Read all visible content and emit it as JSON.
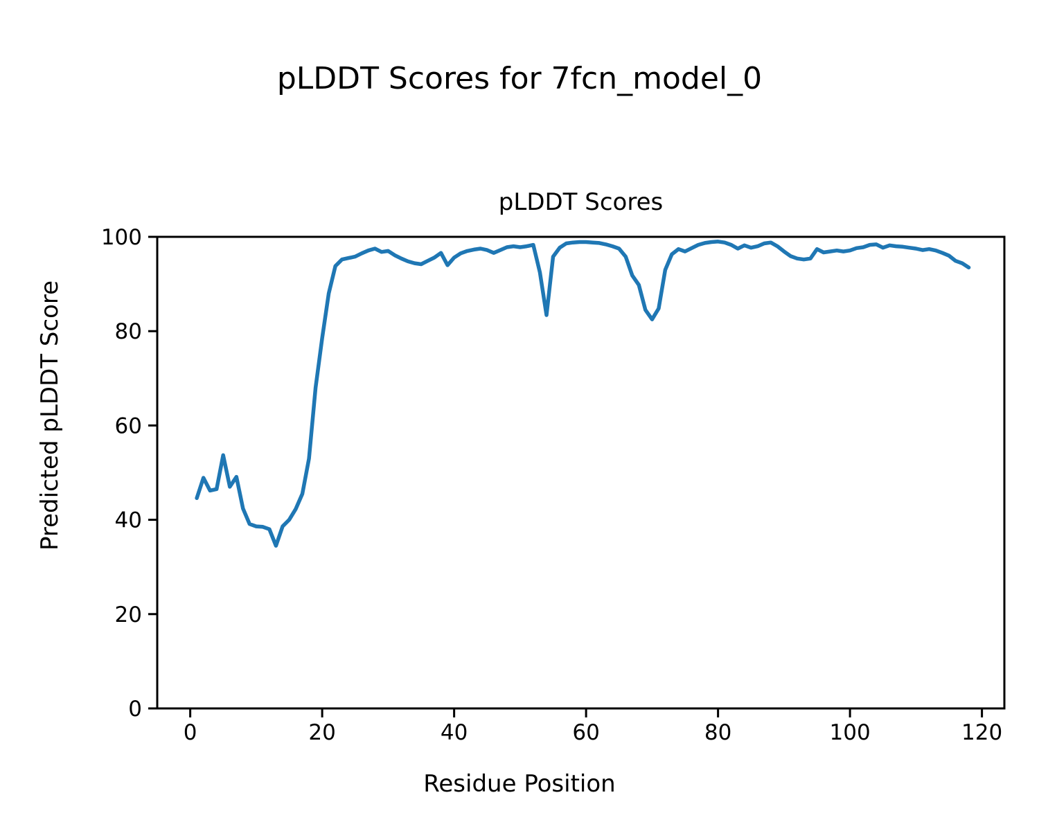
{
  "figure_title": "pLDDT Scores for 7fcn_model_0",
  "colors": {
    "background": "#ffffff",
    "text": "#000000",
    "spine": "#000000",
    "line": "#1f77b4"
  },
  "chart_data": {
    "type": "line",
    "title": "pLDDT Scores",
    "xlabel": "Residue Position",
    "ylabel": "Predicted pLDDT Score",
    "x_ticks": [
      0,
      20,
      40,
      60,
      80,
      100,
      120
    ],
    "y_ticks": [
      0,
      20,
      40,
      60,
      80,
      100
    ],
    "xlim": [
      -5.0,
      123.4
    ],
    "ylim": [
      0,
      100
    ],
    "grid": false,
    "legend": "none",
    "line_color": "#1f77b4",
    "line_width": 5.5,
    "series": [
      {
        "name": "pLDDT",
        "x": [
          1,
          2,
          3,
          4,
          5,
          6,
          7,
          8,
          9,
          10,
          11,
          12,
          13,
          14,
          15,
          16,
          17,
          18,
          19,
          20,
          21,
          22,
          23,
          24,
          25,
          26,
          27,
          28,
          29,
          30,
          31,
          32,
          33,
          34,
          35,
          36,
          37,
          38,
          39,
          40,
          41,
          42,
          43,
          44,
          45,
          46,
          47,
          48,
          49,
          50,
          51,
          52,
          53,
          54,
          55,
          56,
          57,
          58,
          59,
          60,
          61,
          62,
          63,
          64,
          65,
          66,
          67,
          68,
          69,
          70,
          71,
          72,
          73,
          74,
          75,
          76,
          77,
          78,
          79,
          80,
          81,
          82,
          83,
          84,
          85,
          86,
          87,
          88,
          89,
          90,
          91,
          92,
          93,
          94,
          95,
          96,
          97,
          98,
          99,
          100,
          101,
          102,
          103,
          104,
          105,
          106,
          107,
          108,
          109,
          110,
          111,
          112,
          113,
          114,
          115,
          116,
          117,
          118
        ],
        "values": [
          44.6,
          48.9,
          46.2,
          46.5,
          53.7,
          47.0,
          49.1,
          42.4,
          39.1,
          38.6,
          38.5,
          38.0,
          34.5,
          38.6,
          40.0,
          42.3,
          45.5,
          53.0,
          68.0,
          78.5,
          88.0,
          93.8,
          95.2,
          95.5,
          95.8,
          96.5,
          97.1,
          97.5,
          96.8,
          97.0,
          96.1,
          95.4,
          94.8,
          94.4,
          94.2,
          94.9,
          95.6,
          96.6,
          94.0,
          95.6,
          96.5,
          97.0,
          97.3,
          97.5,
          97.2,
          96.6,
          97.2,
          97.8,
          98.0,
          97.8,
          98.0,
          98.3,
          92.5,
          83.4,
          95.8,
          97.7,
          98.6,
          98.8,
          98.9,
          98.9,
          98.8,
          98.7,
          98.4,
          98.0,
          97.5,
          95.8,
          91.8,
          89.8,
          84.5,
          82.5,
          84.8,
          93.0,
          96.3,
          97.4,
          96.9,
          97.6,
          98.3,
          98.7,
          98.9,
          99.0,
          98.8,
          98.3,
          97.5,
          98.2,
          97.7,
          98.0,
          98.6,
          98.8,
          98.0,
          96.9,
          95.9,
          95.4,
          95.2,
          95.4,
          97.4,
          96.7,
          96.9,
          97.1,
          96.9,
          97.1,
          97.6,
          97.8,
          98.3,
          98.4,
          97.7,
          98.2,
          98.0,
          97.9,
          97.7,
          97.5,
          97.2,
          97.4,
          97.1,
          96.6,
          96.0,
          94.9,
          94.4,
          93.5
        ]
      }
    ]
  }
}
